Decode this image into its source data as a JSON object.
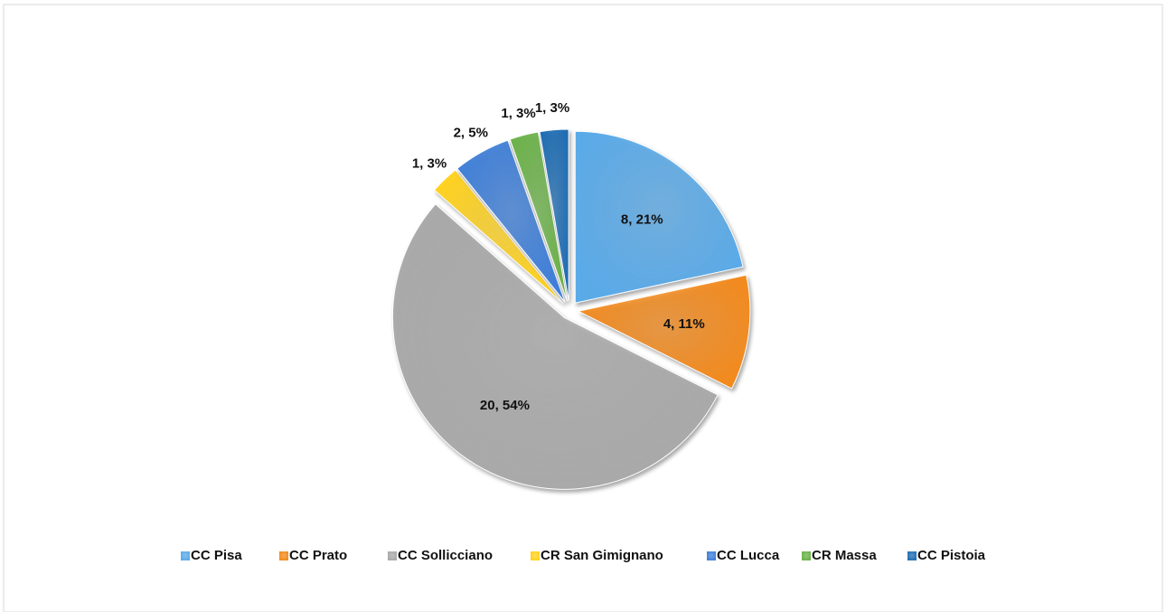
{
  "chart_data": {
    "type": "pie",
    "categories": [
      "CC Pisa",
      "CC Prato",
      "CC Sollicciano",
      "CR San Gimignano",
      "CC Lucca",
      "CR Massa",
      "CC Pistoia"
    ],
    "values": [
      8,
      4,
      20,
      1,
      2,
      1,
      1
    ],
    "value_labels": [
      "8, 21%",
      "4, 11%",
      "20, 54%",
      "1, 3%",
      "2, 5%",
      "1, 3%",
      "1, 3%"
    ],
    "colors": [
      "#5aaae8",
      "#f28a1e",
      "#a9a9a9",
      "#ffd21f",
      "#3f7fd8",
      "#6cb24a",
      "#1f6db3"
    ],
    "legend": "bottom"
  }
}
